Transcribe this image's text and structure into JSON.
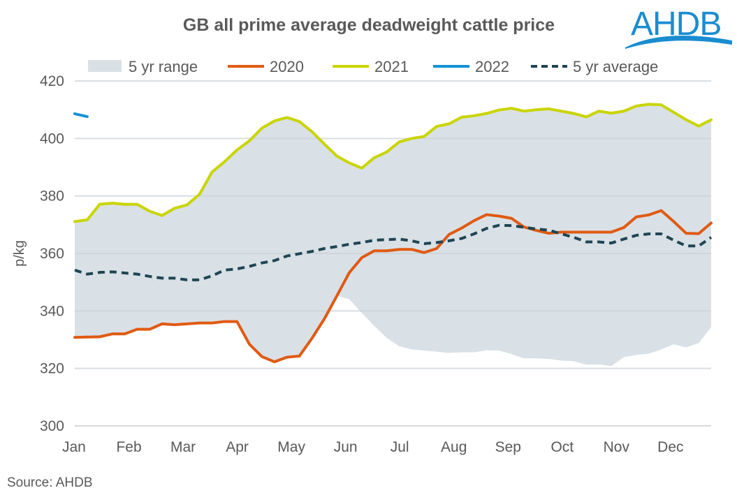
{
  "logo_text": "AHDB",
  "source": "Source: AHDB",
  "colors": {
    "range": "#d9e1e6",
    "2020": "#e05a12",
    "2021": "#c9d400",
    "2022": "#1592d4",
    "average": "#1f4553",
    "logo": "#1a8cd0"
  },
  "chart_data": {
    "type": "line",
    "title": "GB all prime average deadweight cattle price",
    "ylabel": "p/kg",
    "xlabel": "",
    "ylim": [
      300,
      420
    ],
    "yticks": [
      "300",
      "320",
      "340",
      "360",
      "380",
      "400",
      "420"
    ],
    "xticks": [
      "Jan",
      "Feb",
      "Mar",
      "Apr",
      "May",
      "Jun",
      "Jul",
      "Aug",
      "Sep",
      "Oct",
      "Nov",
      "Dec"
    ],
    "x_unit": "week",
    "grid": true,
    "legend": "top",
    "range": {
      "name": "5 yr range",
      "upper": [
        371.1,
        371.7,
        377.1,
        377.5,
        377.1,
        377.1,
        374.7,
        373.2,
        375.7,
        376.9,
        380.6,
        388.3,
        391.9,
        396,
        399.2,
        403.6,
        406.1,
        407.3,
        405.9,
        402.4,
        398.1,
        393.9,
        391.5,
        389.7,
        393.3,
        395.3,
        398.8,
        400,
        400.7,
        404.2,
        405.1,
        407.4,
        407.9,
        408.7,
        409.9,
        410.5,
        409.5,
        410,
        410.3,
        409.5,
        408.7,
        407.5,
        409.5,
        408.8,
        409.5,
        411.3,
        411.9,
        411.7,
        409.1,
        406.5,
        404.3,
        406.5
      ],
      "lower": [
        330.8,
        330.9,
        331,
        332,
        332,
        333.6,
        333.6,
        335.5,
        335.2,
        335.5,
        335.8,
        335.8,
        336.3,
        336.3,
        328.4,
        324.1,
        322.3,
        323.9,
        324.3,
        330.4,
        337.2,
        345.2,
        344.1,
        339.3,
        334.8,
        330.6,
        327.7,
        326.6,
        326.2,
        325.8,
        325.4,
        325.6,
        325.6,
        326.3,
        326.2,
        325,
        323.5,
        323.5,
        323.3,
        322.7,
        322.5,
        321.3,
        321.4,
        320.8,
        323.9,
        324.7,
        325.1,
        326.6,
        328.4,
        327.3,
        328.8,
        334.4
      ]
    },
    "series": [
      {
        "name": "2020",
        "values": [
          330.8,
          330.9,
          331,
          332,
          332,
          333.6,
          333.6,
          335.5,
          335.2,
          335.5,
          335.8,
          335.8,
          336.3,
          336.3,
          328.4,
          324.1,
          322.3,
          323.9,
          324.3,
          330.4,
          337.2,
          345.2,
          353.3,
          358.5,
          360.9,
          360.9,
          361.4,
          361.4,
          360.3,
          361.7,
          366.6,
          368.8,
          371.4,
          373.5,
          373,
          372.2,
          369.2,
          368,
          367,
          367.4,
          367.4,
          367.4,
          367.4,
          367.4,
          369,
          372.7,
          373.4,
          374.9,
          371.1,
          367,
          366.9,
          370.6
        ]
      },
      {
        "name": "2021",
        "values": [
          371.1,
          371.7,
          377.1,
          377.5,
          377.1,
          377.1,
          374.7,
          373.2,
          375.7,
          376.9,
          380.6,
          388.3,
          391.9,
          396,
          399.2,
          403.6,
          406.1,
          407.3,
          405.9,
          402.4,
          398.1,
          393.9,
          391.5,
          389.7,
          393.3,
          395.3,
          398.8,
          400,
          400.7,
          404.2,
          405.1,
          407.4,
          407.9,
          408.7,
          409.9,
          410.5,
          409.5,
          410,
          410.3,
          409.5,
          408.7,
          407.5,
          409.5,
          408.8,
          409.5,
          411.3,
          411.9,
          411.7,
          409.1,
          406.5,
          404.3,
          406.5
        ]
      },
      {
        "name": "2022",
        "values": [
          408.6,
          407.6
        ]
      },
      {
        "name": "5 yr average",
        "dashed": true,
        "values": [
          354.2,
          352.8,
          353.4,
          353.6,
          353.2,
          352.8,
          352,
          351.4,
          351.4,
          350.8,
          350.8,
          352.2,
          354.2,
          354.6,
          355.5,
          356.7,
          357.5,
          359.1,
          359.9,
          360.7,
          361.7,
          362.4,
          363.2,
          363.8,
          364.6,
          364.8,
          365,
          364.4,
          363.4,
          363.8,
          364.4,
          365.2,
          366.8,
          368.7,
          369.8,
          369.7,
          369.1,
          368.5,
          368.1,
          366.8,
          365.6,
          364,
          364,
          363.6,
          365,
          366.3,
          366.8,
          366.8,
          364.6,
          362.6,
          362.6,
          365.6
        ]
      }
    ]
  }
}
